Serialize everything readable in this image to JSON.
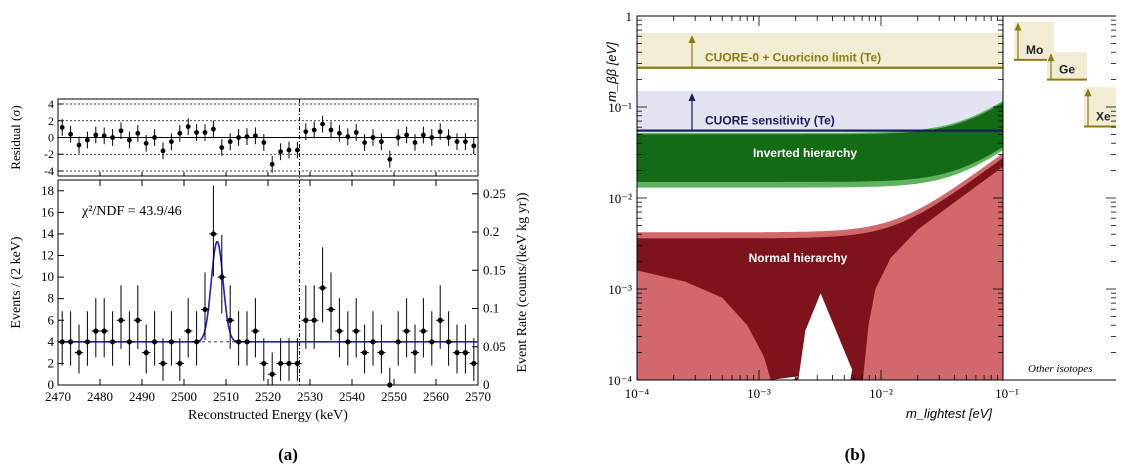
{
  "chart_data": [
    {
      "type": "scatter",
      "panel_label": "(a)",
      "xlabel": "Reconstructed Energy (keV)",
      "ylabel": "Events / (2 keV)",
      "ylabel_right": "Event Rate (counts/(keV kg yr))",
      "residual_ylabel": "Residual (σ)",
      "annotation": "χ²/NDF = 43.9/46",
      "xlim": [
        2470,
        2570
      ],
      "ylim": [
        0,
        19
      ],
      "right_ylim": [
        0,
        0.268
      ],
      "residual_ylim": [
        -4.6,
        4.6
      ],
      "x_ticks": [
        2470,
        2480,
        2490,
        2500,
        2510,
        2520,
        2530,
        2540,
        2550,
        2560,
        2570
      ],
      "y_ticks": [
        0,
        2,
        4,
        6,
        8,
        10,
        12,
        14,
        16,
        18
      ],
      "right_ticks": [
        "0",
        "0.05",
        "0.1",
        "0.15",
        "0.2",
        "0.25"
      ],
      "right_tick_values": [
        0,
        0.05,
        0.1,
        0.15,
        0.2,
        0.25
      ],
      "residual_ticks": [
        -4,
        -2,
        0,
        2,
        4
      ],
      "qbb_line_x": 2527.5,
      "background_level": 4,
      "x": [
        2471,
        2473,
        2475,
        2477,
        2479,
        2481,
        2483,
        2485,
        2487,
        2489,
        2491,
        2493,
        2495,
        2497,
        2499,
        2501,
        2503,
        2505,
        2507,
        2509,
        2511,
        2513,
        2515,
        2517,
        2519,
        2521,
        2523,
        2525,
        2527,
        2529,
        2531,
        2533,
        2535,
        2537,
        2539,
        2541,
        2543,
        2545,
        2547,
        2549,
        2551,
        2553,
        2555,
        2557,
        2559,
        2561,
        2563,
        2565,
        2567,
        2569
      ],
      "counts": [
        4,
        4,
        3,
        4,
        5,
        5,
        4,
        6,
        4,
        6,
        3,
        4,
        2,
        4,
        2,
        5,
        4,
        7,
        14,
        10,
        6,
        4,
        4,
        5,
        2,
        1,
        2,
        2,
        2,
        6,
        6,
        9,
        7,
        5,
        4,
        5,
        3,
        4,
        3,
        0,
        4,
        5,
        3,
        5,
        4,
        6,
        4,
        3,
        3,
        2
      ],
      "residuals": [
        1.2,
        0.4,
        -0.9,
        -0.3,
        0.3,
        0.2,
        0,
        0.8,
        -0.3,
        0.5,
        -0.7,
        0,
        -1.6,
        -0.5,
        0.5,
        1.3,
        0.6,
        0.6,
        1.0,
        -1.2,
        -0.5,
        0.0,
        0.1,
        0.2,
        -0.6,
        -3.2,
        -1.7,
        -1.5,
        -1.5,
        0.7,
        0.9,
        1.6,
        0.9,
        0.5,
        0.1,
        0.6,
        -0.6,
        0.0,
        -0.5,
        -2.6,
        0.0,
        0.3,
        -0.6,
        0.3,
        0.0,
        0.7,
        0.0,
        -0.5,
        -0.5,
        -1.0
      ],
      "peak": {
        "center": 2507.9,
        "sigma": 1.4,
        "amplitude": 9.3
      },
      "colors": {
        "fit": "#1f1fc8",
        "points": "#000000"
      }
    },
    {
      "type": "area",
      "panel_label": "(b)",
      "xlabel": "m_lightest [eV]",
      "ylabel": "m_ββ [eV]",
      "x_scale": "log",
      "y_scale": "log",
      "xlim": [
        0.0001,
        0.1
      ],
      "ylim": [
        0.0001,
        1
      ],
      "x_ticks": [
        0.0001,
        0.001,
        0.01,
        0.1
      ],
      "x_tick_labels": [
        "10⁻⁴",
        "10⁻³",
        "10⁻²",
        "10⁻¹"
      ],
      "y_ticks": [
        0.0001,
        0.001,
        0.01,
        0.1,
        1
      ],
      "y_tick_labels": [
        "10⁻⁴",
        "10⁻³",
        "10⁻²",
        "10⁻¹",
        "1"
      ],
      "regions": {
        "inverted_label": "Inverted hierarchy",
        "normal_label": "Normal hierarchy",
        "inverted_range": [
          0.015,
          0.05
        ],
        "inverted_outer_range": [
          0.013,
          0.052
        ]
      },
      "limits": [
        {
          "label": "CUORE-0 + Cuoricino limit (Te)",
          "range": [
            0.27,
            0.65
          ],
          "color": "#8a7d14",
          "band_color": "#f3ecd4"
        },
        {
          "label": "CUORE sensitivity (Te)",
          "range": [
            0.055,
            0.15
          ],
          "color": "#1b1b5e",
          "band_color": "#e2e4f1"
        }
      ],
      "other_isotopes_label": "Other isotopes",
      "other_isotopes": [
        {
          "label": "Mo",
          "range": [
            0.33,
            0.87
          ]
        },
        {
          "label": "Ge",
          "range": [
            0.2,
            0.4
          ]
        },
        {
          "label": "Xe",
          "range": [
            0.061,
            0.165
          ]
        }
      ],
      "colors": {
        "ih_dark": "#136b16",
        "ih_light": "#5fb35f",
        "ih_top_dark": "#2e6e31",
        "nh_dark": "#7e141b",
        "nh_light": "#d1686c"
      }
    }
  ]
}
